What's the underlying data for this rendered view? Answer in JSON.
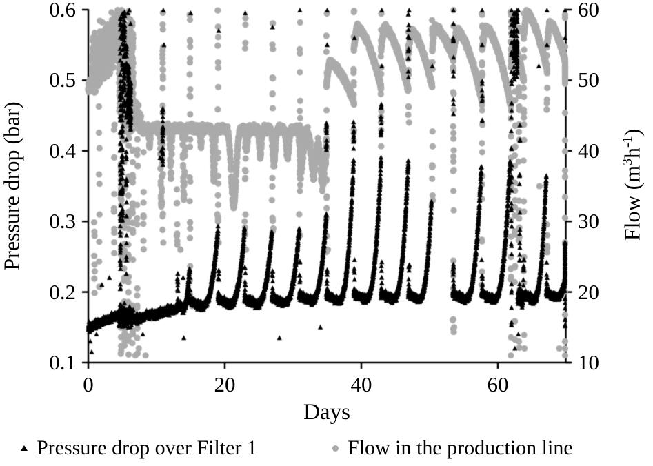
{
  "figure": {
    "background": "#ffffff",
    "axis_color": "#000000"
  },
  "legend": {
    "pressure_label": "Pressure drop over Filter 1",
    "flow_label": "Flow in the production line"
  },
  "chart_data": {
    "type": "scatter",
    "title": "",
    "grid": false,
    "legend_position": "bottom",
    "x_axis": {
      "label": "Days",
      "min": 0,
      "max": 70.5,
      "ticks": [
        {
          "v": 0,
          "t": "0"
        },
        {
          "v": 20,
          "t": "20"
        },
        {
          "v": 40,
          "t": "40"
        },
        {
          "v": 60,
          "t": "60"
        }
      ]
    },
    "y_left": {
      "label": "Pressure drop (bar)",
      "min": 0.1,
      "max": 0.6,
      "ticks": [
        {
          "v": 0.6,
          "t": "0.6"
        },
        {
          "v": 0.5,
          "t": "0.5"
        },
        {
          "v": 0.4,
          "t": "0.4"
        },
        {
          "v": 0.3,
          "t": "0.3"
        },
        {
          "v": 0.2,
          "t": "0.2"
        },
        {
          "v": 0.1,
          "t": "0.1"
        }
      ]
    },
    "y_right": {
      "label_plain": "Flow (m3 h-1)",
      "label_parts": {
        "pre": "Flow (m",
        "sup1": "3",
        "mid": "h",
        "sup2": "-1",
        "post": ")"
      },
      "min": 10,
      "max": 60,
      "ticks": [
        {
          "v": 60,
          "t": "60"
        },
        {
          "v": 50,
          "t": "50"
        },
        {
          "v": 40,
          "t": "40"
        },
        {
          "v": 30,
          "t": "30"
        },
        {
          "v": 20,
          "t": "20"
        },
        {
          "v": 10,
          "t": "10"
        }
      ]
    },
    "series": [
      {
        "name": "Pressure drop over Filter 1",
        "axis": "left",
        "marker": "triangle",
        "color": "#000000",
        "marker_px": 7,
        "baseline": [
          {
            "t0": 0.0,
            "t1": 4.5,
            "v0": 0.15,
            "v1": 0.168,
            "noise": 0.005,
            "dt": 0.015
          },
          {
            "t0": 4.5,
            "t1": 6.6,
            "v0": 0.165,
            "v1": 0.165,
            "noise": 0.012,
            "dt": 0.015
          },
          {
            "t0": 6.6,
            "t1": 13.0,
            "v0": 0.162,
            "v1": 0.176,
            "noise": 0.005,
            "dt": 0.015
          },
          {
            "t0": 62.9,
            "t1": 63.7,
            "v0": 0.196,
            "v1": 0.19,
            "noise": 0.01,
            "dt": 0.015
          }
        ],
        "cycles": [
          {
            "t0": 13.0,
            "t1": 14.8,
            "base": 0.176,
            "peak": 0.23
          },
          {
            "t0": 14.8,
            "t1": 19.0,
            "base": 0.18,
            "peak": 0.29
          },
          {
            "t0": 19.0,
            "t1": 22.9,
            "base": 0.183,
            "peak": 0.29
          },
          {
            "t0": 22.9,
            "t1": 26.9,
            "base": 0.183,
            "peak": 0.285
          },
          {
            "t0": 26.9,
            "t1": 30.9,
            "base": 0.185,
            "peak": 0.29
          },
          {
            "t0": 30.9,
            "t1": 34.9,
            "base": 0.188,
            "peak": 0.312
          },
          {
            "t0": 34.9,
            "t1": 38.9,
            "base": 0.188,
            "peak": 0.39
          },
          {
            "t0": 38.9,
            "t1": 42.9,
            "base": 0.19,
            "peak": 0.39
          },
          {
            "t0": 42.9,
            "t1": 46.9,
            "base": 0.19,
            "peak": 0.39
          },
          {
            "t0": 46.9,
            "t1": 50.3,
            "base": 0.19,
            "peak": 0.33
          },
          {
            "t0": 53.4,
            "t1": 57.6,
            "base": 0.19,
            "peak": 0.38
          },
          {
            "t0": 57.6,
            "t1": 61.8,
            "base": 0.19,
            "peak": 0.39
          },
          {
            "t0": 63.7,
            "t1": 67.1,
            "base": 0.19,
            "peak": 0.365
          },
          {
            "t0": 67.1,
            "t1": 70.5,
            "base": 0.192,
            "peak": 0.27
          }
        ],
        "horn": {
          "dv": 0.048,
          "n": 9
        },
        "columns": [
          {
            "day": 4.7,
            "vmin": 0.16,
            "vmax": 0.6,
            "n": 60
          },
          {
            "day": 5.0,
            "vmin": 0.3,
            "vmax": 0.6,
            "n": 50
          },
          {
            "day": 5.3,
            "vmin": 0.45,
            "vmax": 0.6,
            "n": 45
          },
          {
            "day": 5.6,
            "vmin": 0.2,
            "vmax": 0.55,
            "n": 30
          },
          {
            "day": 5.9,
            "vmin": 0.44,
            "vmax": 0.52,
            "n": 60
          },
          {
            "day": 6.2,
            "vmin": 0.42,
            "vmax": 0.5,
            "n": 45
          },
          {
            "day": 10.9,
            "vmin": 0.38,
            "vmax": 0.46,
            "n": 25
          },
          {
            "day": 34.9,
            "vmin": 0.4,
            "vmax": 0.44,
            "n": 12
          },
          {
            "day": 38.9,
            "vmin": 0.4,
            "vmax": 0.45,
            "n": 12
          },
          {
            "day": 42.9,
            "vmin": 0.42,
            "vmax": 0.47,
            "n": 12
          },
          {
            "day": 46.9,
            "vmin": 0.5,
            "vmax": 0.6,
            "n": 10
          },
          {
            "day": 53.5,
            "vmin": 0.45,
            "vmax": 0.56,
            "n": 10
          },
          {
            "day": 57.7,
            "vmin": 0.44,
            "vmax": 0.5,
            "n": 8
          },
          {
            "day": 62.0,
            "vmin": 0.15,
            "vmax": 0.6,
            "n": 40
          },
          {
            "day": 62.4,
            "vmin": 0.5,
            "vmax": 0.6,
            "n": 40
          },
          {
            "day": 62.8,
            "vmin": 0.5,
            "vmax": 0.6,
            "n": 40
          },
          {
            "day": 63.2,
            "vmin": 0.15,
            "vmax": 0.45,
            "n": 18
          },
          {
            "day": 70.3,
            "vmin": 0.15,
            "vmax": 0.27,
            "n": 18
          }
        ],
        "spikes": [
          [
            2.0,
            0.21
          ],
          [
            3.1,
            0.22
          ],
          [
            5.8,
            0.595
          ],
          [
            6.0,
            0.6
          ],
          [
            6.2,
            0.58
          ],
          [
            11.0,
            0.6
          ],
          [
            11.1,
            0.55
          ],
          [
            13.9,
            0.22
          ],
          [
            15.0,
            0.595
          ],
          [
            19.1,
            0.57
          ],
          [
            23.0,
            0.595
          ],
          [
            27.0,
            0.575
          ],
          [
            31.0,
            0.6
          ],
          [
            35.0,
            0.6
          ],
          [
            35.0,
            0.55
          ],
          [
            39.0,
            0.56
          ],
          [
            43.0,
            0.52
          ],
          [
            43.0,
            0.6
          ],
          [
            47.0,
            0.56
          ],
          [
            47.0,
            0.6
          ],
          [
            50.4,
            0.52
          ],
          [
            53.5,
            0.6
          ],
          [
            53.5,
            0.58
          ],
          [
            57.7,
            0.6
          ],
          [
            57.7,
            0.55
          ],
          [
            62.0,
            0.6
          ],
          [
            63.0,
            0.6
          ],
          [
            66.0,
            0.52
          ],
          [
            67.2,
            0.6
          ],
          [
            67.2,
            0.55
          ],
          [
            70.3,
            0.6
          ],
          [
            70.3,
            0.56
          ],
          [
            0.3,
            0.13
          ],
          [
            0.5,
            0.115
          ],
          [
            1.2,
            0.14
          ],
          [
            8.0,
            0.14
          ],
          [
            14.0,
            0.135
          ],
          [
            10.5,
            0.39
          ],
          [
            10.7,
            0.4
          ],
          [
            28.0,
            0.135
          ],
          [
            34.0,
            0.15
          ],
          [
            62.5,
            0.12
          ],
          [
            63.0,
            0.14
          ]
        ]
      },
      {
        "name": "Flow in the production line",
        "axis": "right",
        "marker": "circle",
        "color": "#ababab",
        "marker_px": 9,
        "band": [
          {
            "t0": 0.0,
            "t1": 0.6,
            "v0": 49.0,
            "v1": 50.0,
            "noise": 0.5,
            "dt": 0.02
          },
          {
            "t0": 0.6,
            "t1": 4.5,
            "v0": 52.0,
            "v1": 56.5,
            "noise": 2.8,
            "dt": 0.01
          },
          {
            "t0": 4.5,
            "t1": 6.6,
            "v0": 52.0,
            "v1": 50.0,
            "noise": 6.0,
            "dt": 0.01
          },
          {
            "t0": 6.6,
            "t1": 7.8,
            "v0": 46.0,
            "v1": 43.5,
            "noise": 1.2,
            "dt": 0.02
          },
          {
            "t0": 7.8,
            "t1": 31.0,
            "v0": 43.3,
            "v1": 43.0,
            "noise": 0.45,
            "dt": 0.03
          },
          {
            "t0": 31.0,
            "t1": 34.9,
            "v0": 42.5,
            "v1": 40.0,
            "noise": 1.0,
            "dt": 0.03
          }
        ],
        "dips": [
          [
            9.0,
            2.5,
            0.1
          ],
          [
            10.7,
            11.0,
            0.1
          ],
          [
            12.1,
            7.0,
            0.1
          ],
          [
            14.0,
            10.0,
            0.1
          ],
          [
            16.5,
            2.5,
            0.1
          ],
          [
            18.4,
            7.5,
            0.12
          ],
          [
            21.3,
            11.0,
            0.35
          ],
          [
            23.2,
            3.0,
            0.12
          ],
          [
            25.2,
            4.0,
            0.15
          ],
          [
            27.2,
            5.0,
            0.18
          ],
          [
            29.2,
            4.0,
            0.18
          ],
          [
            31.2,
            5.0,
            0.2
          ],
          [
            33.0,
            4.5,
            0.25
          ],
          [
            34.3,
            5.0,
            0.25
          ]
        ],
        "sawtooth": [
          {
            "t0": 34.9,
            "t1": 38.9,
            "v0": 52.5,
            "v1": 47.0
          },
          {
            "t0": 38.9,
            "t1": 42.9,
            "v0": 57.5,
            "v1": 49.0
          },
          {
            "t0": 42.9,
            "t1": 46.9,
            "v0": 57.5,
            "v1": 48.5
          },
          {
            "t0": 46.9,
            "t1": 50.4,
            "v0": 57.0,
            "v1": 49.0
          },
          {
            "t0": 50.4,
            "t1": 53.5,
            "v0": 57.5,
            "v1": 53.0
          },
          {
            "t0": 53.5,
            "t1": 57.7,
            "v0": 57.0,
            "v1": 47.0
          },
          {
            "t0": 57.7,
            "t1": 61.9,
            "v0": 57.5,
            "v1": 46.5
          },
          {
            "t0": 61.9,
            "t1": 63.8,
            "v0": 55.0,
            "v1": 50.0
          },
          {
            "t0": 63.8,
            "t1": 67.2,
            "v0": 59.5,
            "v1": 51.5
          },
          {
            "t0": 67.2,
            "t1": 70.5,
            "v0": 58.0,
            "v1": 50.0
          }
        ],
        "columns": [
          {
            "day": 0.9,
            "vmin": 15,
            "vmax": 49,
            "n": 12
          },
          {
            "day": 1.6,
            "vmin": 17,
            "vmax": 50,
            "n": 10
          },
          {
            "day": 3.8,
            "vmin": 25,
            "vmax": 50,
            "n": 12
          },
          {
            "day": 4.8,
            "vmin": 10.5,
            "vmax": 60,
            "n": 50
          },
          {
            "day": 5.3,
            "vmin": 12,
            "vmax": 60,
            "n": 40
          },
          {
            "day": 5.9,
            "vmin": 11,
            "vmax": 60,
            "n": 40
          },
          {
            "day": 6.5,
            "vmin": 10.2,
            "vmax": 60,
            "n": 45
          },
          {
            "day": 7.2,
            "vmin": 11,
            "vmax": 48,
            "n": 20
          },
          {
            "day": 8.1,
            "vmin": 26,
            "vmax": 43,
            "n": 10
          },
          {
            "day": 10.9,
            "vmin": 26,
            "vmax": 60,
            "n": 22
          },
          {
            "day": 13.0,
            "vmin": 26,
            "vmax": 38,
            "n": 8
          },
          {
            "day": 14.9,
            "vmin": 18,
            "vmax": 60,
            "n": 25
          },
          {
            "day": 19.0,
            "vmin": 30,
            "vmax": 60,
            "n": 18
          },
          {
            "day": 23.0,
            "vmin": 25,
            "vmax": 60,
            "n": 18
          },
          {
            "day": 27.0,
            "vmin": 28,
            "vmax": 60,
            "n": 16
          },
          {
            "day": 31.0,
            "vmin": 25,
            "vmax": 60,
            "n": 18
          },
          {
            "day": 34.9,
            "vmin": 25,
            "vmax": 60,
            "n": 22
          },
          {
            "day": 38.9,
            "vmin": 40,
            "vmax": 60,
            "n": 14
          },
          {
            "day": 42.9,
            "vmin": 40,
            "vmax": 60,
            "n": 14
          },
          {
            "day": 46.9,
            "vmin": 42,
            "vmax": 60,
            "n": 12
          },
          {
            "day": 50.4,
            "vmin": 32,
            "vmax": 60,
            "n": 16
          },
          {
            "day": 53.5,
            "vmin": 14,
            "vmax": 60,
            "n": 28
          },
          {
            "day": 57.7,
            "vmin": 20,
            "vmax": 60,
            "n": 22
          },
          {
            "day": 61.9,
            "vmin": 10.2,
            "vmax": 60,
            "n": 30
          },
          {
            "day": 62.5,
            "vmin": 12,
            "vmax": 60,
            "n": 24
          },
          {
            "day": 63.1,
            "vmin": 10.5,
            "vmax": 60,
            "n": 24
          },
          {
            "day": 63.8,
            "vmin": 12,
            "vmax": 60,
            "n": 20
          },
          {
            "day": 67.2,
            "vmin": 24,
            "vmax": 60,
            "n": 14
          },
          {
            "day": 70.2,
            "vmin": 10.3,
            "vmax": 60,
            "n": 18
          }
        ],
        "dots": [
          [
            0.15,
            49
          ],
          [
            6.9,
            11
          ],
          [
            7.4,
            12
          ],
          [
            8.4,
            11
          ],
          [
            11.0,
            27
          ],
          [
            13.5,
            26
          ],
          [
            14.8,
            19
          ],
          [
            15.2,
            18
          ],
          [
            18.9,
            31
          ],
          [
            19.1,
            27
          ],
          [
            22.9,
            30
          ],
          [
            23.1,
            26
          ],
          [
            26.9,
            33
          ],
          [
            27.1,
            29
          ],
          [
            30.9,
            31
          ],
          [
            34.9,
            28
          ],
          [
            35.1,
            26
          ],
          [
            38.9,
            43
          ],
          [
            42.9,
            44
          ],
          [
            47.0,
            44
          ],
          [
            50.5,
            33
          ],
          [
            53.4,
            16
          ],
          [
            53.6,
            15
          ],
          [
            57.6,
            21
          ],
          [
            61.9,
            11
          ],
          [
            63.9,
            12
          ],
          [
            66.1,
            35
          ],
          [
            69.0,
            12
          ],
          [
            70.1,
            11
          ],
          [
            70.3,
            13
          ]
        ]
      }
    ]
  }
}
